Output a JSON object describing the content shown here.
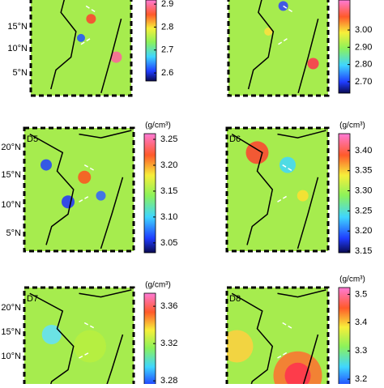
{
  "panels": [
    {
      "lat_labels": [
        "15°N",
        "10°N",
        "5°N"
      ],
      "colorbar": {
        "lim": [
          2.565,
          2.918
        ],
        "ticks": [
          2.9,
          2.8,
          2.7,
          2.6
        ]
      }
    },
    {
      "colorbar": {
        "lim": [
          2.634,
          3.174
        ],
        "ticks": [
          {
            "value": 3.0,
            "label": "3.00"
          },
          {
            "value": 2.9,
            "label": "2.90"
          },
          {
            "value": 2.8,
            "label": "2.80"
          },
          {
            "value": 2.7,
            "label": "2.70"
          }
        ]
      }
    },
    {
      "label": "D5",
      "lat_labels": [
        "20°N",
        "15°N",
        "10°N",
        "5°N"
      ],
      "colorbar": {
        "unit": "(g/cm³)",
        "lim": [
          3.031,
          3.261
        ],
        "ticks": [
          3.25,
          {
            "value": 3.2,
            "label": "3.20"
          },
          3.15,
          {
            "value": 3.1,
            "label": "3.10"
          },
          3.05
        ]
      }
    },
    {
      "label": "D6",
      "colorbar": {
        "unit": "(g/cm³)",
        "lim": [
          3.146,
          3.442
        ],
        "ticks": [
          {
            "value": 3.4,
            "label": "3.40"
          },
          3.35,
          {
            "value": 3.3,
            "label": "3.30"
          },
          3.25,
          {
            "value": 3.2,
            "label": "3.20"
          },
          3.15
        ]
      }
    },
    {
      "label": "D7",
      "lat_labels": [
        "20°N",
        "15°N",
        "10°N"
      ],
      "colorbar": {
        "unit": "(g/cm³)",
        "lim": [
          3.261,
          3.374
        ],
        "ticks": [
          3.36,
          3.32,
          3.28
        ]
      }
    },
    {
      "label": "D8",
      "colorbar": {
        "unit": "(g/cm³)",
        "lim": [
          3.123,
          3.524
        ],
        "ticks": [
          3.5,
          3.4,
          3.3,
          3.2
        ]
      }
    }
  ]
}
